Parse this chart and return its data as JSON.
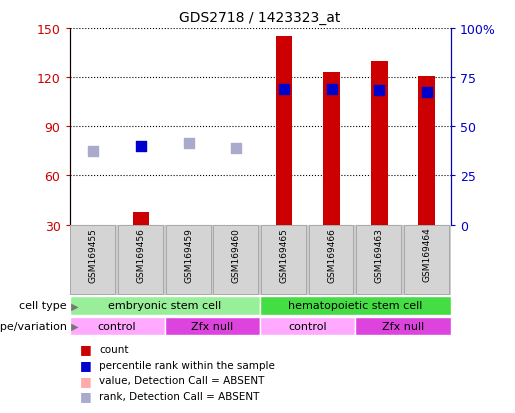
{
  "title": "GDS2718 / 1423323_at",
  "samples": [
    "GSM169455",
    "GSM169456",
    "GSM169459",
    "GSM169460",
    "GSM169465",
    "GSM169466",
    "GSM169463",
    "GSM169464"
  ],
  "count_values": [
    30,
    38,
    30,
    30,
    145,
    123,
    130,
    121
  ],
  "count_is_absent": [
    true,
    false,
    true,
    true,
    false,
    false,
    false,
    false
  ],
  "percentile_rank": [
    75,
    78,
    80,
    77,
    113,
    113,
    112,
    111
  ],
  "percentile_rank_is_absent": [
    true,
    false,
    true,
    true,
    false,
    false,
    false,
    false
  ],
  "ylim": [
    30,
    150
  ],
  "yticks_left": [
    30,
    60,
    90,
    120,
    150
  ],
  "yticks_right": [
    0,
    25,
    50,
    75,
    100
  ],
  "yticklabels_right": [
    "0",
    "25",
    "50",
    "75",
    "100%"
  ],
  "count_color_present": "#cc0000",
  "count_color_absent": "#ffaaaa",
  "rank_color_present": "#0000cc",
  "rank_color_absent": "#aaaacc",
  "cell_type_groups": [
    {
      "label": "embryonic stem cell",
      "start": 0,
      "end": 4,
      "color": "#99ee99"
    },
    {
      "label": "hematopoietic stem cell",
      "start": 4,
      "end": 8,
      "color": "#44dd44"
    }
  ],
  "genotype_groups": [
    {
      "label": "control",
      "start": 0,
      "end": 2,
      "color": "#ffaaff"
    },
    {
      "label": "Zfx null",
      "start": 2,
      "end": 4,
      "color": "#dd44dd"
    },
    {
      "label": "control",
      "start": 4,
      "end": 6,
      "color": "#ffaaff"
    },
    {
      "label": "Zfx null",
      "start": 6,
      "end": 8,
      "color": "#dd44dd"
    }
  ],
  "legend_items": [
    {
      "label": "count",
      "color": "#cc0000"
    },
    {
      "label": "percentile rank within the sample",
      "color": "#0000cc"
    },
    {
      "label": "value, Detection Call = ABSENT",
      "color": "#ffaaaa"
    },
    {
      "label": "rank, Detection Call = ABSENT",
      "color": "#aaaacc"
    }
  ],
  "background_color": "#ffffff",
  "tick_label_color_left": "#cc0000",
  "tick_label_color_right": "#0000cc",
  "sample_box_color": "#cccccc",
  "sample_box_edge": "#888888"
}
